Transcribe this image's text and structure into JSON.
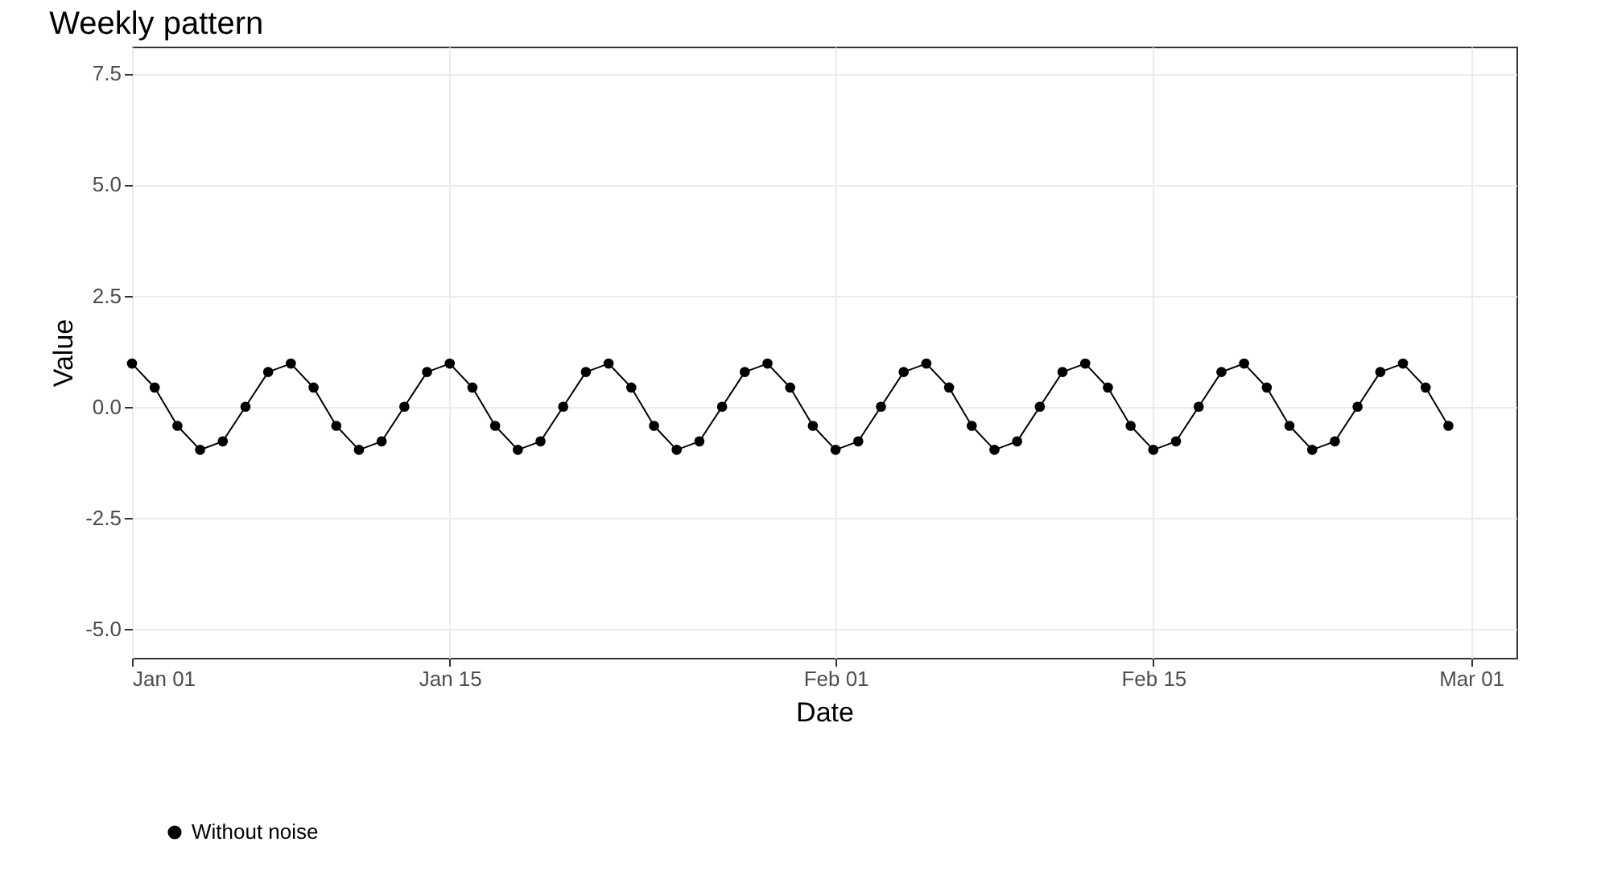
{
  "chart_data": {
    "type": "line",
    "title": "Weekly pattern",
    "xlabel": "Date",
    "ylabel": "Value",
    "x": [
      "--01-01",
      "--01-02",
      "--01-03",
      "--01-04",
      "--01-05",
      "--01-06",
      "--01-07",
      "--01-08",
      "--01-09",
      "--01-10",
      "--01-11",
      "--01-12",
      "--01-13",
      "--01-14",
      "--01-15",
      "--01-16",
      "--01-17",
      "--01-18",
      "--01-19",
      "--01-20",
      "--01-21",
      "--01-22",
      "--01-23",
      "--01-24",
      "--01-25",
      "--01-26",
      "--01-27",
      "--01-28",
      "--01-29",
      "--01-30",
      "--01-31",
      "--02-01",
      "--02-02",
      "--02-03",
      "--02-04",
      "--02-05",
      "--02-06",
      "--02-07",
      "--02-08",
      "--02-09",
      "--02-10",
      "--02-11",
      "--02-12",
      "--02-13",
      "--02-14",
      "--02-15",
      "--02-16",
      "--02-17",
      "--02-18",
      "--02-19",
      "--02-20",
      "--02-21",
      "--02-22",
      "--02-23",
      "--02-24",
      "--02-25",
      "--02-26",
      "--02-27",
      "--02-28"
    ],
    "series": [
      {
        "name": "Without noise",
        "color": "#000000",
        "values": [
          0.97,
          0.43,
          -0.43,
          -0.97,
          -0.78,
          0,
          0.78,
          0.97,
          0.43,
          -0.43,
          -0.97,
          -0.78,
          0,
          0.78,
          0.97,
          0.43,
          -0.43,
          -0.97,
          -0.78,
          0,
          0.78,
          0.97,
          0.43,
          -0.43,
          -0.97,
          -0.78,
          0,
          0.78,
          0.97,
          0.43,
          -0.43,
          -0.97,
          -0.78,
          0,
          0.78,
          0.97,
          0.43,
          -0.43,
          -0.97,
          -0.78,
          0,
          0.78,
          0.97,
          0.43,
          -0.43,
          -0.97,
          -0.78,
          0,
          0.78,
          0.97,
          0.43,
          -0.43,
          -0.97,
          -0.78,
          0,
          0.78,
          0.97,
          0.43,
          -0.43
        ]
      }
    ],
    "xlim": [
      "--01-01",
      "--03-03"
    ],
    "xticks": [
      {
        "value": "--01-01",
        "label": "Jan 01"
      },
      {
        "value": "--01-15",
        "label": "Jan 15"
      },
      {
        "value": "--02-01",
        "label": "Feb 01"
      },
      {
        "value": "--02-15",
        "label": "Feb 15"
      },
      {
        "value": "--03-01",
        "label": "Mar 01"
      }
    ],
    "ylim": [
      -5.65,
      8.1
    ],
    "yticks": [
      {
        "value": -5,
        "label": "-5.0"
      },
      {
        "value": -2.5,
        "label": "-2.5"
      },
      {
        "value": 0,
        "label": "0.0"
      },
      {
        "value": 2.5,
        "label": "2.5"
      },
      {
        "value": 5,
        "label": "5.0"
      },
      {
        "value": 7.5,
        "label": "7.5"
      }
    ],
    "grid": true,
    "legend": "bottom",
    "marker": "circle",
    "line_style": "solid"
  }
}
